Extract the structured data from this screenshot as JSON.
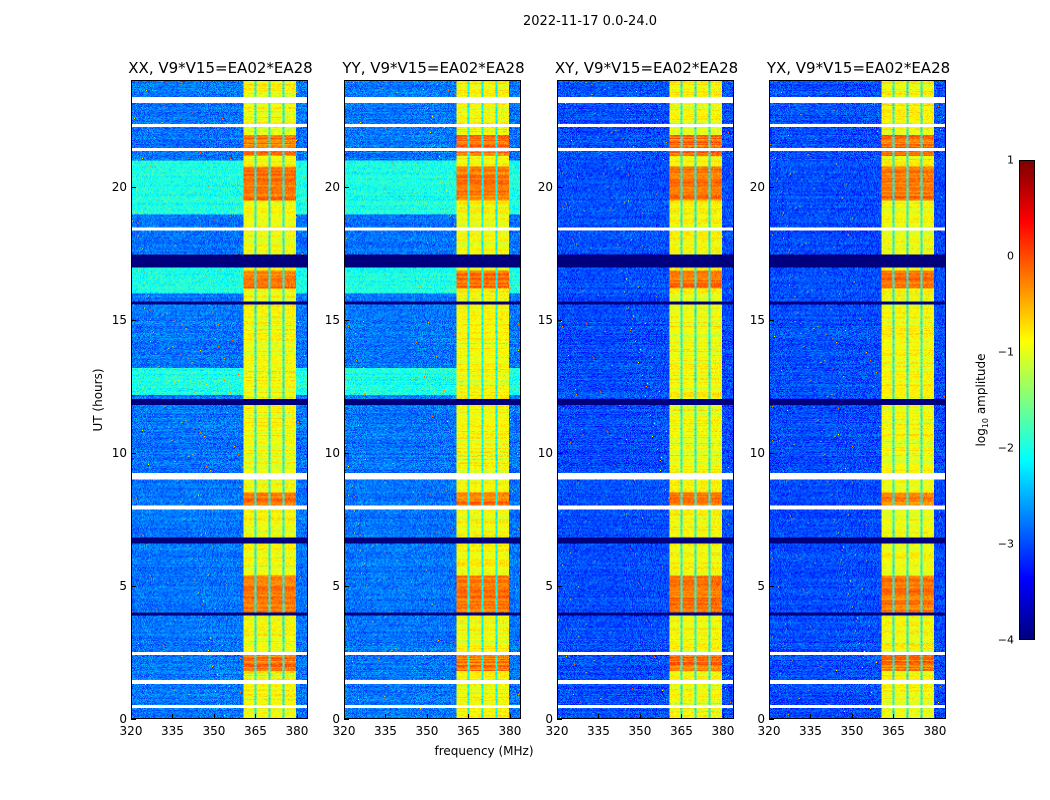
{
  "suptitle": "2022-11-17 0.0-24.0",
  "chart_data": {
    "type": "heatmap",
    "title": "2022-11-17 0.0-24.0",
    "xlabel": "frequency (MHz)",
    "ylabel": "UT (hours)",
    "xlim": [
      320,
      384
    ],
    "ylim": [
      0,
      24
    ],
    "xticks": [
      "320",
      "335",
      "350",
      "365",
      "380"
    ],
    "xtick_values": [
      320,
      335,
      350,
      365,
      380
    ],
    "yticks": [
      "0",
      "5",
      "10",
      "15",
      "20"
    ],
    "ytick_values": [
      0,
      5,
      10,
      15,
      20
    ],
    "panels": [
      {
        "title": "XX, V9*V15=EA02*EA28",
        "background_log_amp": -2.8,
        "low_band_enhanced": true
      },
      {
        "title": "YY, V9*V15=EA02*EA28",
        "background_log_amp": -2.8,
        "low_band_enhanced": true
      },
      {
        "title": "XY, V9*V15=EA02*EA28",
        "background_log_amp": -3.0,
        "low_band_enhanced": false
      },
      {
        "title": "YX, V9*V15=EA02*EA28",
        "background_log_amp": -3.0,
        "low_band_enhanced": false
      }
    ],
    "rfi_band_mhz": [
      360.5,
      380
    ],
    "rfi_band_log_amp": -0.9,
    "rfi_band_gaps_mhz": [
      365,
      370,
      375
    ],
    "rfi_hot_hours": [
      [
        21.2,
        22.0
      ],
      [
        19.5,
        20.8
      ],
      [
        16.2,
        16.9
      ],
      [
        8.0,
        8.5
      ],
      [
        4.0,
        5.4
      ],
      [
        1.8,
        2.4
      ]
    ],
    "flagged_zero_hours": [
      [
        17.0,
        17.5
      ],
      [
        11.8,
        12.05
      ],
      [
        6.6,
        6.8
      ],
      [
        3.9,
        4.0
      ],
      [
        15.6,
        15.7
      ]
    ],
    "flagged_blank_hours": [
      [
        23.2,
        23.4
      ],
      [
        22.3,
        22.4
      ],
      [
        21.4,
        21.5
      ],
      [
        18.4,
        18.5
      ],
      [
        9.0,
        9.25
      ],
      [
        7.85,
        8.0
      ],
      [
        2.4,
        2.5
      ],
      [
        1.3,
        1.45
      ],
      [
        0.4,
        0.5
      ]
    ],
    "colorbar": {
      "label_prefix": "log",
      "label_sub": "10",
      "label_suffix": " amplitude",
      "range": [
        -4,
        1
      ],
      "ticks": [
        "1",
        "0",
        "−1",
        "−2",
        "−3",
        "−4"
      ],
      "tick_values": [
        1,
        0,
        -1,
        -2,
        -3,
        -4
      ],
      "colormap": "jet"
    }
  }
}
